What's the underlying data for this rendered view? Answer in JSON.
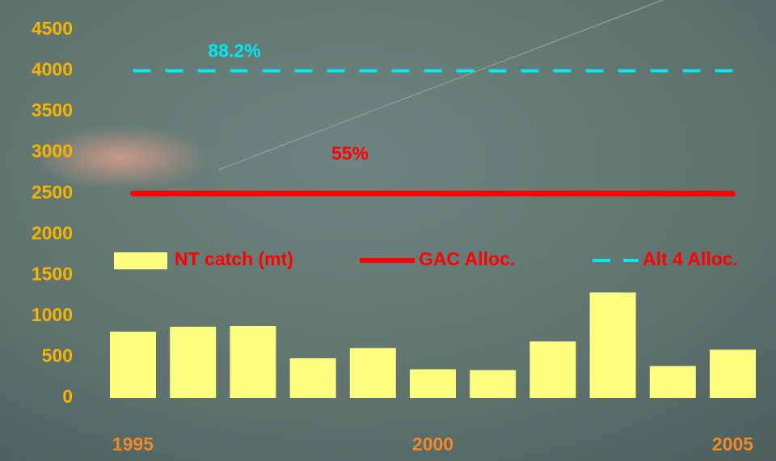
{
  "chart_data": {
    "type": "bar",
    "categories": [
      "1995",
      null,
      null,
      null,
      null,
      "2000",
      null,
      null,
      null,
      null,
      "2005"
    ],
    "series": [
      {
        "name": "NT catch (mt)",
        "color": "#ffff80",
        "values": [
          810,
          870,
          880,
          485,
          610,
          350,
          340,
          690,
          1290,
          390,
          590
        ]
      }
    ],
    "reference_lines": [
      {
        "name": "GAC Alloc.",
        "value": 2500,
        "label": "55%",
        "color": "#ff0000",
        "style": "solid"
      },
      {
        "name": "Alt 4 Alloc.",
        "value": 4000,
        "label": "88.2%",
        "color": "#00e8f0",
        "style": "dashed"
      }
    ],
    "ylim": [
      0,
      4500
    ],
    "yticks": [
      0,
      500,
      1000,
      1500,
      2000,
      2500,
      3000,
      3500,
      4000,
      4500
    ],
    "legend": "center"
  }
}
